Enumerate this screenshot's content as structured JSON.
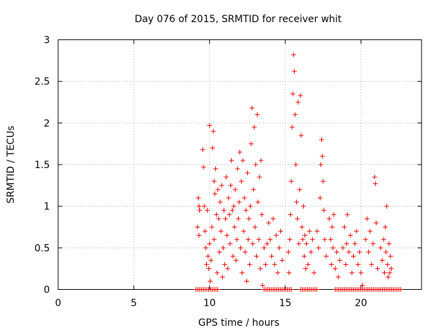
{
  "chart_data": {
    "type": "scatter",
    "title": "Day 076 of 2015, SRMTID for receiver whit",
    "xlabel": "GPS time / hours",
    "ylabel": "SRMTID / TECUs",
    "xlim": [
      0,
      24
    ],
    "ylim": [
      0,
      3
    ],
    "x_ticks": [
      0,
      5,
      10,
      15,
      20
    ],
    "y_ticks": [
      0,
      0.5,
      1,
      1.5,
      2,
      2.5,
      3
    ],
    "x_tick_labels": [
      "0",
      "5",
      "10",
      "15",
      "20"
    ],
    "y_tick_labels": [
      "0",
      "0.5",
      "1",
      "1.5",
      "2",
      "2.5",
      "3"
    ],
    "grid": true,
    "marker": "+",
    "marker_color": "#ee0000",
    "series": [
      {
        "name": "SRMTID",
        "points": [
          [
            9.2,
            0.75
          ],
          [
            9.25,
            1.1
          ],
          [
            9.3,
            1.0
          ],
          [
            9.3,
            0.65
          ],
          [
            9.35,
            0.95
          ],
          [
            9.55,
            1.68
          ],
          [
            9.6,
            1.47
          ],
          [
            9.65,
            1.0
          ],
          [
            9.7,
            0.7
          ],
          [
            9.75,
            0.5
          ],
          [
            9.8,
            0.3
          ],
          [
            9.85,
            0.95
          ],
          [
            9.9,
            0.4
          ],
          [
            9.95,
            0.25
          ],
          [
            10.0,
            1.97
          ],
          [
            10.0,
            0.55
          ],
          [
            10.05,
            0.1
          ],
          [
            10.1,
            0.35
          ],
          [
            10.15,
            0.75
          ],
          [
            10.2,
            1.7
          ],
          [
            10.25,
            1.9
          ],
          [
            10.3,
            1.3
          ],
          [
            10.3,
            0.6
          ],
          [
            10.35,
            1.15
          ],
          [
            10.4,
            1.45
          ],
          [
            10.45,
            0.9
          ],
          [
            10.5,
            0.2
          ],
          [
            10.55,
            1.2
          ],
          [
            10.6,
            0.85
          ],
          [
            10.65,
            0.45
          ],
          [
            10.7,
            1.05
          ],
          [
            10.75,
            0.7
          ],
          [
            10.8,
            1.25
          ],
          [
            10.85,
            0.15
          ],
          [
            10.9,
            0.5
          ],
          [
            10.95,
            0.95
          ],
          [
            11.0,
            0.3
          ],
          [
            11.05,
            0.85
          ],
          [
            11.1,
            1.35
          ],
          [
            11.15,
            0.65
          ],
          [
            11.2,
            0.25
          ],
          [
            11.25,
            1.1
          ],
          [
            11.3,
            0.9
          ],
          [
            11.35,
            0.55
          ],
          [
            11.4,
            1.25
          ],
          [
            11.45,
            1.55
          ],
          [
            11.5,
            0.95
          ],
          [
            11.55,
            0.4
          ],
          [
            11.6,
            1.0
          ],
          [
            11.65,
            0.75
          ],
          [
            11.7,
            1.2
          ],
          [
            11.75,
            0.35
          ],
          [
            11.8,
            0.6
          ],
          [
            11.85,
            1.45
          ],
          [
            11.9,
            0.85
          ],
          [
            11.95,
            1.05
          ],
          [
            12.0,
            1.65
          ],
          [
            12.05,
            0.5
          ],
          [
            12.1,
            1.3
          ],
          [
            12.15,
            0.2
          ],
          [
            12.2,
            1.55
          ],
          [
            12.25,
            0.7
          ],
          [
            12.3,
            1.1
          ],
          [
            12.35,
            0.45
          ],
          [
            12.4,
            0.95
          ],
          [
            12.45,
            0.1
          ],
          [
            12.5,
            1.4
          ],
          [
            12.55,
            0.6
          ],
          [
            12.6,
            0.85
          ],
          [
            12.65,
            0.3
          ],
          [
            12.7,
            1.0
          ],
          [
            12.75,
            1.75
          ],
          [
            12.8,
            2.18
          ],
          [
            12.85,
            0.55
          ],
          [
            12.9,
            1.2
          ],
          [
            12.95,
            1.95
          ],
          [
            13.0,
            0.75
          ],
          [
            13.05,
            1.5
          ],
          [
            13.1,
            0.4
          ],
          [
            13.15,
            2.1
          ],
          [
            13.2,
            1.05
          ],
          [
            13.25,
            0.6
          ],
          [
            13.3,
            1.35
          ],
          [
            13.35,
            0.25
          ],
          [
            13.4,
            1.55
          ],
          [
            13.45,
            0.9
          ],
          [
            13.5,
            0.05
          ],
          [
            13.6,
            0.5
          ],
          [
            13.7,
            0.3
          ],
          [
            13.8,
            0.55
          ],
          [
            13.9,
            0.8
          ],
          [
            14.0,
            0.6
          ],
          [
            14.1,
            0.4
          ],
          [
            14.2,
            0.85
          ],
          [
            14.3,
            0.3
          ],
          [
            14.4,
            0.65
          ],
          [
            14.5,
            0.2
          ],
          [
            14.6,
            0.5
          ],
          [
            14.7,
            0.7
          ],
          [
            14.8,
            0.35
          ],
          [
            15.2,
            0.45
          ],
          [
            15.25,
            0.2
          ],
          [
            15.3,
            0.6
          ],
          [
            15.35,
            0.9
          ],
          [
            15.4,
            1.3
          ],
          [
            15.45,
            1.95
          ],
          [
            15.5,
            2.35
          ],
          [
            15.55,
            2.82
          ],
          [
            15.6,
            2.62
          ],
          [
            15.65,
            2.1
          ],
          [
            15.7,
            1.5
          ],
          [
            15.75,
            1.05
          ],
          [
            15.8,
            0.85
          ],
          [
            15.85,
            2.25
          ],
          [
            15.9,
            0.55
          ],
          [
            15.95,
            1.2
          ],
          [
            16.0,
            2.33
          ],
          [
            16.05,
            1.85
          ],
          [
            16.1,
            0.75
          ],
          [
            16.15,
            0.6
          ],
          [
            16.2,
            1.0
          ],
          [
            16.25,
            0.4
          ],
          [
            16.3,
            0.65
          ],
          [
            16.35,
            0.25
          ],
          [
            16.4,
            0.55
          ],
          [
            16.5,
            0.3
          ],
          [
            16.6,
            0.7
          ],
          [
            16.7,
            0.45
          ],
          [
            16.8,
            0.6
          ],
          [
            16.9,
            0.2
          ],
          [
            17.1,
            0.7
          ],
          [
            17.2,
            0.5
          ],
          [
            17.3,
            1.1
          ],
          [
            17.35,
            1.5
          ],
          [
            17.4,
            1.8
          ],
          [
            17.45,
            1.6
          ],
          [
            17.5,
            1.3
          ],
          [
            17.55,
            0.95
          ],
          [
            17.6,
            0.6
          ],
          [
            17.7,
            0.4
          ],
          [
            17.9,
            0.85
          ],
          [
            18.0,
            0.6
          ],
          [
            18.05,
            0.3
          ],
          [
            18.1,
            0.75
          ],
          [
            18.15,
            0.5
          ],
          [
            18.2,
            0.9
          ],
          [
            18.3,
            0.25
          ],
          [
            18.4,
            0.45
          ],
          [
            18.5,
            0.15
          ],
          [
            18.6,
            0.35
          ],
          [
            18.8,
            0.5
          ],
          [
            18.9,
            0.75
          ],
          [
            19.0,
            0.3
          ],
          [
            19.05,
            0.55
          ],
          [
            19.1,
            0.9
          ],
          [
            19.2,
            0.45
          ],
          [
            19.3,
            0.65
          ],
          [
            19.4,
            0.2
          ],
          [
            19.5,
            0.4
          ],
          [
            19.6,
            0.55
          ],
          [
            19.7,
            0.7
          ],
          [
            19.8,
            0.3
          ],
          [
            19.9,
            0.45
          ],
          [
            20.0,
            0.2
          ],
          [
            20.1,
            0.05
          ],
          [
            20.3,
            0.6
          ],
          [
            20.4,
            0.85
          ],
          [
            20.5,
            0.45
          ],
          [
            20.6,
            0.7
          ],
          [
            20.7,
            0.3
          ],
          [
            20.8,
            0.55
          ],
          [
            20.9,
            1.35
          ],
          [
            20.95,
            1.27
          ],
          [
            21.0,
            0.8
          ],
          [
            21.1,
            0.25
          ],
          [
            21.3,
            0.5
          ],
          [
            21.4,
            0.35
          ],
          [
            21.5,
            0.6
          ],
          [
            21.55,
            0.2
          ],
          [
            21.6,
            0.75
          ],
          [
            21.65,
            0.45
          ],
          [
            21.7,
            1.0
          ],
          [
            21.75,
            0.3
          ],
          [
            21.8,
            0.15
          ],
          [
            21.85,
            0.55
          ],
          [
            21.9,
            0.2
          ],
          [
            21.95,
            0.4
          ],
          [
            22.0,
            0.25
          ]
        ]
      }
    ],
    "zero_ranges": [
      [
        9.1,
        10.6
      ],
      [
        13.6,
        15.4
      ],
      [
        16.0,
        17.1
      ],
      [
        18.3,
        22.7
      ]
    ]
  }
}
